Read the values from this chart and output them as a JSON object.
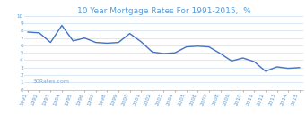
{
  "title": "10 Year Mortgage Rates For 1991-2015,  %",
  "title_color": "#5b9bd5",
  "title_fontsize": 6.5,
  "watermark": "30Rates.com",
  "watermark_color": "#7f9fcf",
  "watermark_fontsize": 4.5,
  "line_color": "#4472c4",
  "line_width": 1.0,
  "background_color": "#ffffff",
  "grid_color": "#bdd7ee",
  "years": [
    1991,
    1992,
    1993,
    1994,
    1995,
    1996,
    1997,
    1998,
    1999,
    2000,
    2001,
    2002,
    2003,
    2004,
    2005,
    2006,
    2007,
    2008,
    2009,
    2010,
    2011,
    2012,
    2013,
    2014,
    2015
  ],
  "rates": [
    7.8,
    7.7,
    6.4,
    8.7,
    6.6,
    7.0,
    6.4,
    6.3,
    6.4,
    7.6,
    6.5,
    5.1,
    4.9,
    5.0,
    5.8,
    5.9,
    5.8,
    4.9,
    3.9,
    4.3,
    3.8,
    2.5,
    3.1,
    2.9,
    3.0
  ],
  "ylim": [
    0,
    10
  ],
  "yticks": [
    0,
    1,
    2,
    3,
    4,
    5,
    6,
    7,
    8,
    9,
    10
  ],
  "tick_color": "#5b9bd5",
  "tick_fontsize": 4.2,
  "spine_color": "#b0b0b0"
}
